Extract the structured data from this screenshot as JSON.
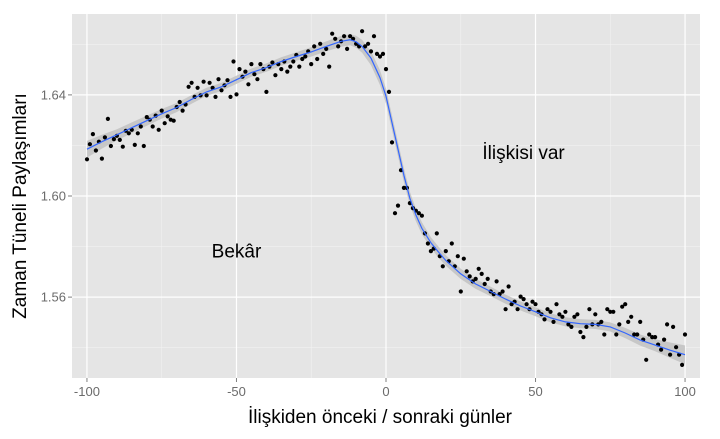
{
  "chart_data": {
    "type": "scatter",
    "title": "",
    "xlabel": "İlişkiden önceki / sonraki günler",
    "ylabel": "Zaman Tüneli Paylaşımları",
    "xlim": [
      -105,
      105
    ],
    "ylim": [
      1.528,
      1.672
    ],
    "x_ticks": [
      -100,
      -50,
      0,
      50,
      100
    ],
    "x_tick_labels": [
      "-100",
      "-50",
      "0",
      "50",
      "100"
    ],
    "y_ticks": [
      1.56,
      1.6,
      1.64
    ],
    "y_tick_labels": [
      "1.56",
      "1.60",
      "1.64"
    ],
    "grid": true,
    "legend": "none",
    "annotations": [
      {
        "text": "Bekâr",
        "x": -50,
        "y": 1.578
      },
      {
        "text": "İlişkisi var",
        "x": 46,
        "y": 1.617
      }
    ],
    "series": [
      {
        "kind": "points",
        "points": [
          [
            -100,
            1.6145
          ],
          [
            -99,
            1.6205
          ],
          [
            -98,
            1.6245
          ],
          [
            -97,
            1.618
          ],
          [
            -96,
            1.6215
          ],
          [
            -95,
            1.6148
          ],
          [
            -94,
            1.6232
          ],
          [
            -93,
            1.6305
          ],
          [
            -92,
            1.6198
          ],
          [
            -91,
            1.6225
          ],
          [
            -90,
            1.6238
          ],
          [
            -89,
            1.6222
          ],
          [
            -88,
            1.6195
          ],
          [
            -87,
            1.6258
          ],
          [
            -86,
            1.6248
          ],
          [
            -85,
            1.6262
          ],
          [
            -84,
            1.6202
          ],
          [
            -83,
            1.6248
          ],
          [
            -82,
            1.6275
          ],
          [
            -81,
            1.6198
          ],
          [
            -80,
            1.6312
          ],
          [
            -79,
            1.6302
          ],
          [
            -78,
            1.6275
          ],
          [
            -77,
            1.6318
          ],
          [
            -76,
            1.6262
          ],
          [
            -75,
            1.6338
          ],
          [
            -74,
            1.6288
          ],
          [
            -73,
            1.6315
          ],
          [
            -72,
            1.6302
          ],
          [
            -71,
            1.6298
          ],
          [
            -70,
            1.6352
          ],
          [
            -69,
            1.6372
          ],
          [
            -68,
            1.6338
          ],
          [
            -67,
            1.6362
          ],
          [
            -66,
            1.6432
          ],
          [
            -65,
            1.6448
          ],
          [
            -64,
            1.6392
          ],
          [
            -63,
            1.6428
          ],
          [
            -62,
            1.6398
          ],
          [
            -61,
            1.6452
          ],
          [
            -60,
            1.6398
          ],
          [
            -59,
            1.6448
          ],
          [
            -58,
            1.6428
          ],
          [
            -57,
            1.6392
          ],
          [
            -56,
            1.6462
          ],
          [
            -55,
            1.6418
          ],
          [
            -54,
            1.6438
          ],
          [
            -53,
            1.6458
          ],
          [
            -52,
            1.6392
          ],
          [
            -51,
            1.6532
          ],
          [
            -50,
            1.6402
          ],
          [
            -49,
            1.6502
          ],
          [
            -48,
            1.6472
          ],
          [
            -47,
            1.6492
          ],
          [
            -46,
            1.6442
          ],
          [
            -45,
            1.6522
          ],
          [
            -44,
            1.6482
          ],
          [
            -43,
            1.6462
          ],
          [
            -42,
            1.6522
          ],
          [
            -41,
            1.6502
          ],
          [
            -40,
            1.6412
          ],
          [
            -39,
            1.6512
          ],
          [
            -38,
            1.6528
          ],
          [
            -37,
            1.6478
          ],
          [
            -36,
            1.6522
          ],
          [
            -35,
            1.6502
          ],
          [
            -34,
            1.6532
          ],
          [
            -33,
            1.6492
          ],
          [
            -32,
            1.6512
          ],
          [
            -31,
            1.6532
          ],
          [
            -30,
            1.6558
          ],
          [
            -29,
            1.6512
          ],
          [
            -28,
            1.6542
          ],
          [
            -27,
            1.6552
          ],
          [
            -26,
            1.6572
          ],
          [
            -25,
            1.6522
          ],
          [
            -24,
            1.6592
          ],
          [
            -23,
            1.6542
          ],
          [
            -22,
            1.6602
          ],
          [
            -21,
            1.6562
          ],
          [
            -20,
            1.6582
          ],
          [
            -19,
            1.6512
          ],
          [
            -18,
            1.6642
          ],
          [
            -17,
            1.6622
          ],
          [
            -16,
            1.6592
          ],
          [
            -15,
            1.6612
          ],
          [
            -14,
            1.6632
          ],
          [
            -13,
            1.6582
          ],
          [
            -12,
            1.6632
          ],
          [
            -11,
            1.6622
          ],
          [
            -10,
            1.6602
          ],
          [
            -9,
            1.6592
          ],
          [
            -8,
            1.6652
          ],
          [
            -7,
            1.6592
          ],
          [
            -6,
            1.6602
          ],
          [
            -5,
            1.6572
          ],
          [
            -4,
            1.6632
          ],
          [
            -3,
            1.6562
          ],
          [
            -2,
            1.6552
          ],
          [
            -1,
            1.6562
          ],
          [
            0,
            1.6502
          ],
          [
            1,
            1.6412
          ],
          [
            2,
            1.6212
          ],
          [
            3,
            1.5932
          ],
          [
            4,
            1.5962
          ],
          [
            5,
            1.6102
          ],
          [
            6,
            1.6032
          ],
          [
            7,
            1.6032
          ],
          [
            8,
            1.5972
          ],
          [
            9,
            1.5952
          ],
          [
            10,
            1.5942
          ],
          [
            11,
            1.5932
          ],
          [
            12,
            1.5922
          ],
          [
            13,
            1.5852
          ],
          [
            14,
            1.5812
          ],
          [
            15,
            1.5782
          ],
          [
            16,
            1.5792
          ],
          [
            17,
            1.5852
          ],
          [
            18,
            1.5762
          ],
          [
            19,
            1.5722
          ],
          [
            20,
            1.5782
          ],
          [
            21,
            1.5742
          ],
          [
            22,
            1.5812
          ],
          [
            23,
            1.5722
          ],
          [
            24,
            1.5762
          ],
          [
            25,
            1.5622
          ],
          [
            26,
            1.5752
          ],
          [
            27,
            1.5702
          ],
          [
            28,
            1.5682
          ],
          [
            29,
            1.5662
          ],
          [
            30,
            1.5672
          ],
          [
            31,
            1.5712
          ],
          [
            32,
            1.5692
          ],
          [
            33,
            1.5652
          ],
          [
            34,
            1.5672
          ],
          [
            35,
            1.5622
          ],
          [
            36,
            1.5612
          ],
          [
            37,
            1.5662
          ],
          [
            38,
            1.5612
          ],
          [
            39,
            1.5622
          ],
          [
            40,
            1.5552
          ],
          [
            41,
            1.5642
          ],
          [
            42,
            1.5572
          ],
          [
            43,
            1.5582
          ],
          [
            44,
            1.5552
          ],
          [
            45,
            1.5602
          ],
          [
            46,
            1.5592
          ],
          [
            47,
            1.5572
          ],
          [
            48,
            1.5552
          ],
          [
            49,
            1.5582
          ],
          [
            50,
            1.5572
          ],
          [
            51,
            1.5542
          ],
          [
            52,
            1.5532
          ],
          [
            53,
            1.5512
          ],
          [
            54,
            1.5552
          ],
          [
            55,
            1.5542
          ],
          [
            56,
            1.5502
          ],
          [
            57,
            1.5572
          ],
          [
            58,
            1.5532
          ],
          [
            59,
            1.5522
          ],
          [
            60,
            1.5542
          ],
          [
            61,
            1.5492
          ],
          [
            62,
            1.5482
          ],
          [
            63,
            1.5522
          ],
          [
            64,
            1.5532
          ],
          [
            65,
            1.5462
          ],
          [
            66,
            1.5442
          ],
          [
            67,
            1.5482
          ],
          [
            68,
            1.5552
          ],
          [
            69,
            1.5492
          ],
          [
            70,
            1.5532
          ],
          [
            71,
            1.5492
          ],
          [
            72,
            1.5502
          ],
          [
            73,
            1.5452
          ],
          [
            74,
            1.5552
          ],
          [
            75,
            1.5542
          ],
          [
            76,
            1.5542
          ],
          [
            77,
            1.5452
          ],
          [
            78,
            1.5492
          ],
          [
            79,
            1.5562
          ],
          [
            80,
            1.5572
          ],
          [
            81,
            1.5502
          ],
          [
            82,
            1.5522
          ],
          [
            83,
            1.5452
          ],
          [
            84,
            1.5452
          ],
          [
            85,
            1.5502
          ],
          [
            86,
            1.5432
          ],
          [
            87,
            1.5352
          ],
          [
            88,
            1.5452
          ],
          [
            89,
            1.5442
          ],
          [
            90,
            1.5442
          ],
          [
            91,
            1.5412
          ],
          [
            92,
            1.5392
          ],
          [
            93,
            1.5432
          ],
          [
            94,
            1.5492
          ],
          [
            95,
            1.5372
          ],
          [
            96,
            1.5482
          ],
          [
            97,
            1.5402
          ],
          [
            98,
            1.5372
          ],
          [
            99,
            1.5332
          ],
          [
            100,
            1.5452
          ]
        ]
      },
      {
        "kind": "smooth",
        "points": [
          [
            -100,
            1.6185
          ],
          [
            -95,
            1.6215
          ],
          [
            -90,
            1.6242
          ],
          [
            -85,
            1.627
          ],
          [
            -80,
            1.6298
          ],
          [
            -75,
            1.6325
          ],
          [
            -70,
            1.635
          ],
          [
            -65,
            1.6382
          ],
          [
            -60,
            1.6412
          ],
          [
            -55,
            1.6432
          ],
          [
            -50,
            1.646
          ],
          [
            -45,
            1.6488
          ],
          [
            -40,
            1.6508
          ],
          [
            -35,
            1.6532
          ],
          [
            -30,
            1.6552
          ],
          [
            -25,
            1.657
          ],
          [
            -20,
            1.6592
          ],
          [
            -15,
            1.6612
          ],
          [
            -12,
            1.6618
          ],
          [
            -10,
            1.661
          ],
          [
            -8,
            1.6592
          ],
          [
            -5,
            1.6545
          ],
          [
            -2,
            1.6468
          ],
          [
            0,
            1.6395
          ],
          [
            2,
            1.629
          ],
          [
            4,
            1.6185
          ],
          [
            6,
            1.6082
          ],
          [
            8,
            1.599
          ],
          [
            10,
            1.5925
          ],
          [
            12,
            1.5872
          ],
          [
            15,
            1.5815
          ],
          [
            18,
            1.5772
          ],
          [
            20,
            1.5745
          ],
          [
            25,
            1.5692
          ],
          [
            30,
            1.5652
          ],
          [
            35,
            1.5622
          ],
          [
            40,
            1.5592
          ],
          [
            45,
            1.5565
          ],
          [
            50,
            1.5542
          ],
          [
            55,
            1.5518
          ],
          [
            60,
            1.5502
          ],
          [
            65,
            1.5495
          ],
          [
            70,
            1.5492
          ],
          [
            75,
            1.5482
          ],
          [
            80,
            1.5458
          ],
          [
            85,
            1.543
          ],
          [
            90,
            1.541
          ],
          [
            95,
            1.539
          ],
          [
            100,
            1.5372
          ]
        ],
        "color": "#3366ff",
        "band_halfwidth": [
          [
            -100,
            0.0033
          ],
          [
            -90,
            0.0022
          ],
          [
            -60,
            0.0016
          ],
          [
            -30,
            0.0017
          ],
          [
            -12,
            0.0022
          ],
          [
            -5,
            0.0028
          ],
          [
            0,
            0.003
          ],
          [
            5,
            0.0028
          ],
          [
            15,
            0.0022
          ],
          [
            40,
            0.0018
          ],
          [
            75,
            0.0018
          ],
          [
            90,
            0.0024
          ],
          [
            100,
            0.0037
          ]
        ]
      }
    ],
    "colors": {
      "panel": "#e5e5e5",
      "point": "#000000",
      "line": "#3366ff",
      "band": "#c2c2c2"
    }
  }
}
